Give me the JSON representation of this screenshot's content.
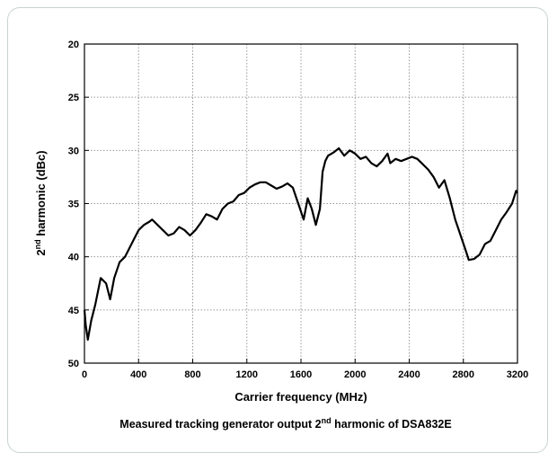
{
  "chart_data": {
    "type": "line",
    "x_label": "Carrier frequency (MHz)",
    "y_label": {
      "number": "2",
      "sup": "nd",
      "rest": " harmonic (dBc)"
    },
    "caption": {
      "before": "Measured tracking generator output 2",
      "sup": "nd",
      "after": " harmonic of DSA832E"
    },
    "x": [
      0,
      10,
      25,
      50,
      80,
      120,
      160,
      190,
      220,
      260,
      300,
      320,
      360,
      400,
      440,
      480,
      500,
      540,
      580,
      620,
      660,
      700,
      740,
      780,
      820,
      860,
      900,
      940,
      980,
      1020,
      1060,
      1100,
      1140,
      1180,
      1220,
      1260,
      1300,
      1340,
      1380,
      1420,
      1460,
      1500,
      1540,
      1580,
      1620,
      1650,
      1680,
      1710,
      1740,
      1760,
      1780,
      1800,
      1840,
      1880,
      1920,
      1960,
      2000,
      2040,
      2080,
      2120,
      2160,
      2200,
      2240,
      2260,
      2300,
      2340,
      2380,
      2420,
      2460,
      2500,
      2540,
      2580,
      2620,
      2660,
      2700,
      2740,
      2780,
      2820,
      2840,
      2880,
      2920,
      2960,
      3000,
      3040,
      3080,
      3120,
      3160,
      3190,
      3200
    ],
    "values": [
      45,
      46.5,
      47.8,
      46,
      44.5,
      42,
      42.5,
      44,
      42,
      40.5,
      40,
      39.5,
      38.5,
      37.5,
      37,
      36.7,
      36.5,
      37,
      37.5,
      38,
      37.8,
      37.2,
      37.5,
      38,
      37.5,
      36.8,
      36,
      36.2,
      36.5,
      35.5,
      35,
      34.8,
      34.2,
      34,
      33.5,
      33.2,
      33,
      33,
      33.3,
      33.6,
      33.4,
      33.1,
      33.5,
      35,
      36.5,
      34.5,
      35.5,
      37,
      35.5,
      32,
      31,
      30.5,
      30.2,
      29.8,
      30.5,
      30,
      30.3,
      30.8,
      30.6,
      31.2,
      31.5,
      31,
      30.3,
      31.2,
      30.8,
      31,
      30.8,
      30.6,
      30.8,
      31.3,
      31.8,
      32.5,
      33.5,
      32.8,
      34.5,
      36.5,
      38,
      39.5,
      40.3,
      40.2,
      39.8,
      38.8,
      38.5,
      37.5,
      36.5,
      35.8,
      35,
      33.8,
      34
    ],
    "color": "#000000",
    "xlim": [
      0,
      3200
    ],
    "xticks": [
      0,
      400,
      800,
      1200,
      1600,
      2000,
      2400,
      2800,
      3200
    ],
    "ylim": [
      50,
      20
    ],
    "yticks": [
      20,
      25,
      30,
      35,
      40,
      45,
      50
    ],
    "grid": true
  }
}
